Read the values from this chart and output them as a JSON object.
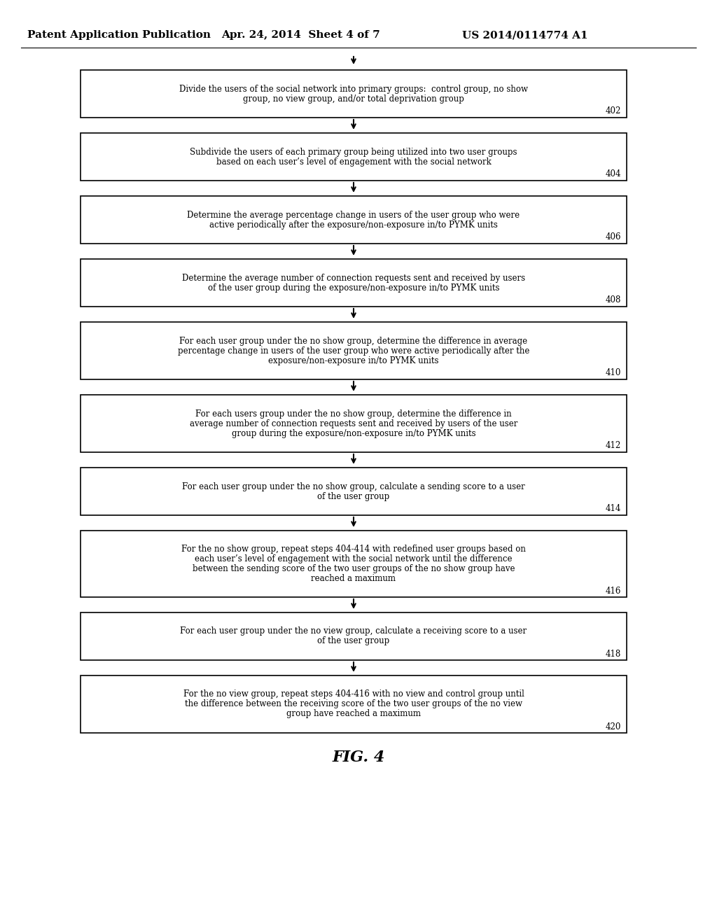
{
  "title_line1": "Patent Application Publication",
  "title_line2": "Apr. 24, 2014  Sheet 4 of 7",
  "title_line3": "US 2014/0114774 A1",
  "fig_label": "FIG. 4",
  "background_color": "#ffffff",
  "box_edge_color": "#000000",
  "text_color": "#000000",
  "arrow_color": "#000000",
  "boxes": [
    {
      "id": "402",
      "label": "402",
      "lines": [
        "Divide the users of the social network into primary groups:  control group, no show",
        "group, no view group, and/or total deprivation group"
      ]
    },
    {
      "id": "404",
      "label": "404",
      "lines": [
        "Subdivide the users of each primary group being utilized into two user groups",
        "based on each user’s level of engagement with the social network"
      ]
    },
    {
      "id": "406",
      "label": "406",
      "lines": [
        "Determine the average percentage change in users of the user group who were",
        "active periodically after the exposure/non-exposure in/to PYMK units"
      ]
    },
    {
      "id": "408",
      "label": "408",
      "lines": [
        "Determine the average number of connection requests sent and received by users",
        "of the user group during the exposure/non-exposure in/to PYMK units"
      ]
    },
    {
      "id": "410",
      "label": "410",
      "lines": [
        "For each user group under the no show group, determine the difference in average",
        "percentage change in users of the user group who were active periodically after the",
        "exposure/non-exposure in/to PYMK units"
      ]
    },
    {
      "id": "412",
      "label": "412",
      "lines": [
        "For each users group under the no show group, determine the difference in",
        "average number of connection requests sent and received by users of the user",
        "group during the exposure/non-exposure in/to PYMK units"
      ]
    },
    {
      "id": "414",
      "label": "414",
      "lines": [
        "For each user group under the no show group, calculate a sending score to a user",
        "of the user group"
      ]
    },
    {
      "id": "416",
      "label": "416",
      "lines": [
        "For the no show group, repeat steps 404-414 with redefined user groups based on",
        "each user’s level of engagement with the social network until the difference",
        "between the sending score of the two user groups of the no show group have",
        "reached a maximum"
      ]
    },
    {
      "id": "418",
      "label": "418",
      "lines": [
        "For each user group under the no view group, calculate a receiving score to a user",
        "of the user group"
      ]
    },
    {
      "id": "420",
      "label": "420",
      "lines": [
        "For the no view group, repeat steps 404-416 with no view and control group until",
        "the difference between the receiving score of the two user groups of the no view",
        "group have reached a maximum"
      ]
    }
  ]
}
